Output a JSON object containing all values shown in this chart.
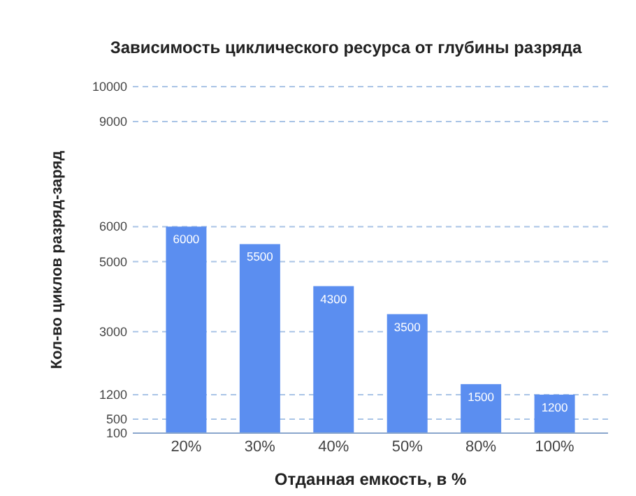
{
  "chart_data": {
    "type": "bar",
    "title": "Зависимость циклического ресурса от глубины разряда",
    "xlabel": "Отданная емкость, в %",
    "ylabel": "Кол-во циклов разряд-заряд",
    "categories": [
      "20%",
      "30%",
      "40%",
      "50%",
      "80%",
      "100%"
    ],
    "values": [
      6000,
      5500,
      4300,
      3500,
      1500,
      1200
    ],
    "color": "#5b8ef0",
    "ylim": [
      100,
      10000
    ],
    "yticks": [
      100,
      500,
      1200,
      3000,
      5000,
      6000,
      9000,
      10000
    ],
    "grid": "y",
    "data_labels": true
  }
}
